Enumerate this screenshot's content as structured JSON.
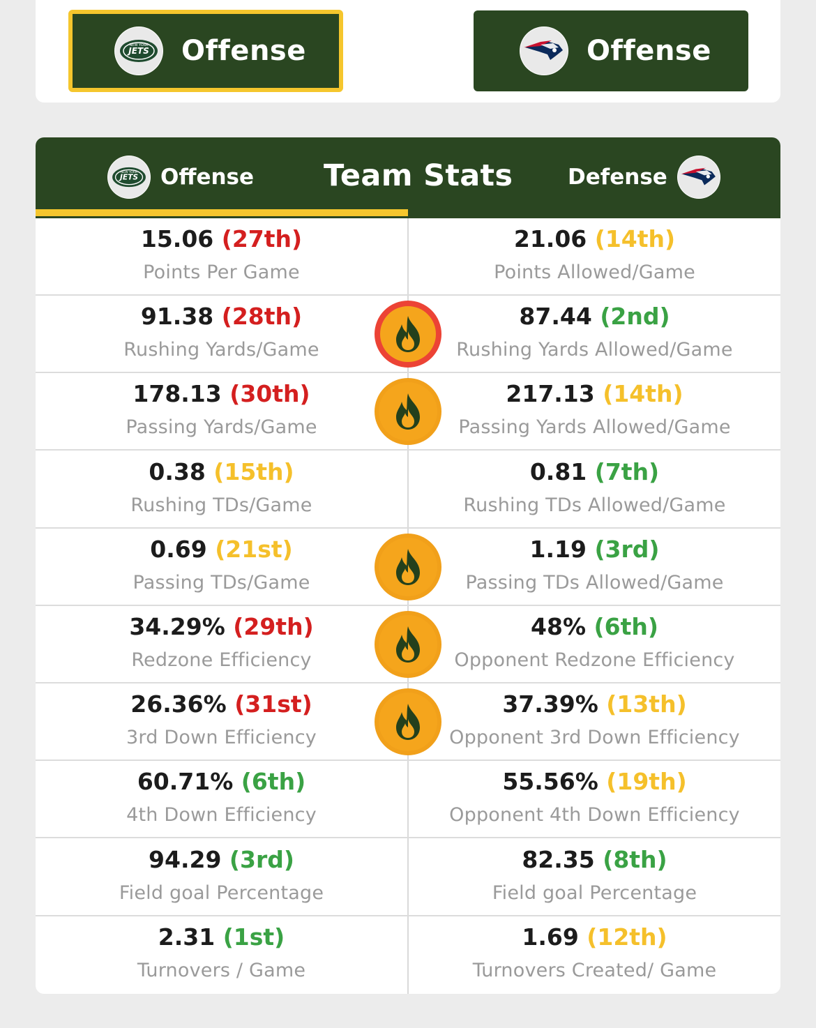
{
  "top_toggle": {
    "left_label": "Offense",
    "right_label": "Offense",
    "left_team_logo": "jets-logo-icon",
    "right_team_logo": "patriots-logo-icon"
  },
  "team_stats": {
    "title": "Team Stats",
    "left_label": "Offense",
    "right_label": "Defense",
    "rows": [
      {
        "left_value": "15.06",
        "left_rank": "(27th)",
        "left_label": "Points Per Game",
        "right_value": "21.06",
        "right_rank": "(14th)",
        "right_label": "Points Allowed/Game",
        "flame": "none"
      },
      {
        "left_value": "91.38",
        "left_rank": "(28th)",
        "left_label": "Rushing Yards/Game",
        "right_value": "87.44",
        "right_rank": "(2nd)",
        "right_label": "Rushing Yards Allowed/Game",
        "flame": "hot"
      },
      {
        "left_value": "178.13",
        "left_rank": "(30th)",
        "left_label": "Passing Yards/Game",
        "right_value": "217.13",
        "right_rank": "(14th)",
        "right_label": "Passing Yards Allowed/Game",
        "flame": "warm"
      },
      {
        "left_value": "0.38",
        "left_rank": "(15th)",
        "left_label": "Rushing TDs/Game",
        "right_value": "0.81",
        "right_rank": "(7th)",
        "right_label": "Rushing TDs Allowed/Game",
        "flame": "none"
      },
      {
        "left_value": "0.69",
        "left_rank": "(21st)",
        "left_label": "Passing TDs/Game",
        "right_value": "1.19",
        "right_rank": "(3rd)",
        "right_label": "Passing TDs Allowed/Game",
        "flame": "warm"
      },
      {
        "left_value": "34.29%",
        "left_rank": "(29th)",
        "left_label": "Redzone Efficiency",
        "right_value": "48%",
        "right_rank": "(6th)",
        "right_label": "Opponent Redzone Efficiency",
        "flame": "warm"
      },
      {
        "left_value": "26.36%",
        "left_rank": "(31st)",
        "left_label": "3rd Down Efficiency",
        "right_value": "37.39%",
        "right_rank": "(13th)",
        "right_label": "Opponent 3rd Down Efficiency",
        "flame": "warm"
      },
      {
        "left_value": "60.71%",
        "left_rank": "(6th)",
        "left_label": "4th Down Efficiency",
        "right_value": "55.56%",
        "right_rank": "(19th)",
        "right_label": "Opponent 4th Down Efficiency",
        "flame": "none"
      },
      {
        "left_value": "94.29",
        "left_rank": "(3rd)",
        "left_label": "Field goal Percentage",
        "right_value": "82.35",
        "right_rank": "(8th)",
        "right_label": "Field goal Percentage",
        "flame": "none"
      },
      {
        "left_value": "2.31",
        "left_rank": "(1st)",
        "left_label": "Turnovers / Game",
        "right_value": "1.69",
        "right_rank": "(12th)",
        "right_label": "Turnovers Created/ Game",
        "flame": "none"
      }
    ]
  },
  "colors": {
    "header_green": "#2a4621",
    "accent_yellow": "#f5c62d",
    "rank_red": "#d41f1f",
    "rank_yellow": "#f5c02b",
    "rank_green": "#3aa244"
  },
  "rank_colors_left": [
    "red",
    "red",
    "red",
    "yellow",
    "yellow",
    "red",
    "red",
    "green",
    "green",
    "green"
  ],
  "rank_colors_right": [
    "yellow",
    "green",
    "yellow",
    "green",
    "green",
    "green",
    "yellow",
    "yellow",
    "green",
    "yellow"
  ]
}
